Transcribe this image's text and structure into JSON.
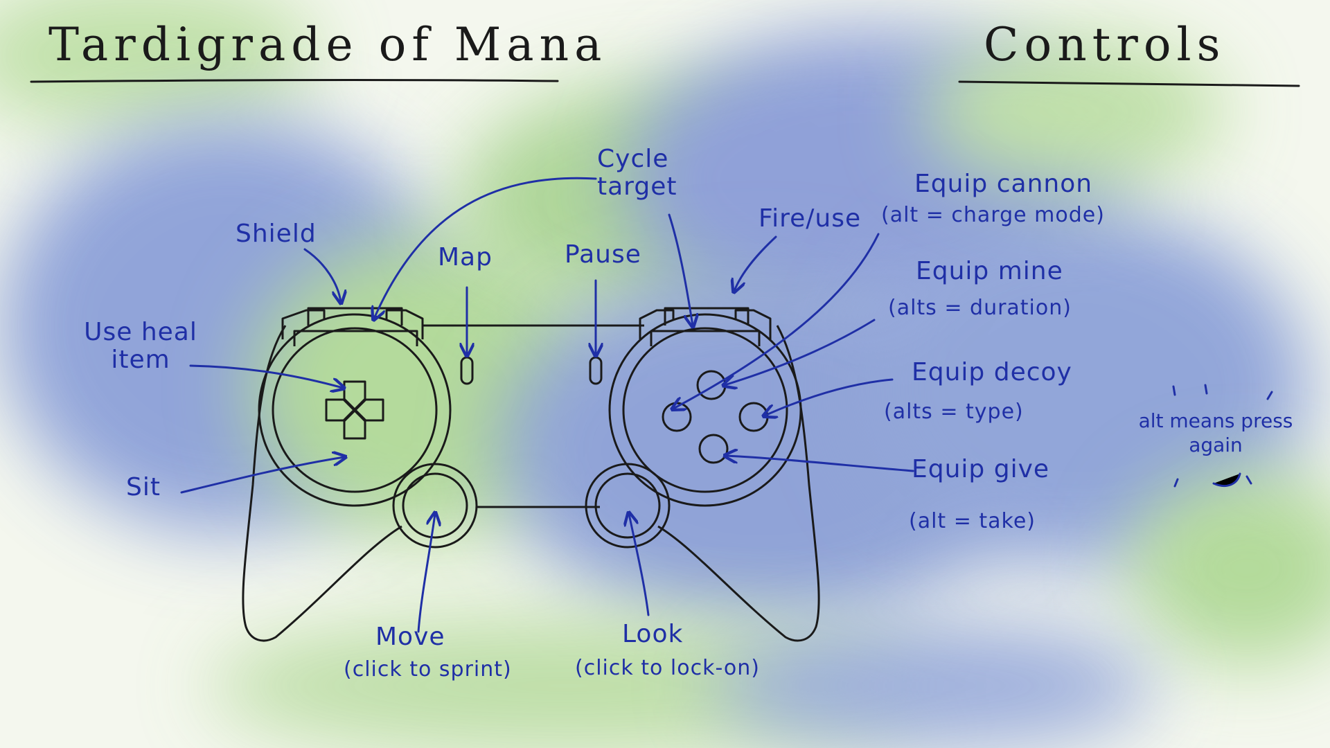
{
  "title": "Tardigrade of Mana",
  "heading": "Controls",
  "labels": {
    "cycle_target": "Cycle target",
    "shield": "Shield",
    "map": "Map",
    "pause": "Pause",
    "fire_use": "Fire/use",
    "use_heal_item": "Use heal item",
    "sit": "Sit",
    "move": "Move",
    "move_sub": "(click to sprint)",
    "look": "Look",
    "look_sub": "(click to lock-on)",
    "equip_cannon": "Equip cannon",
    "equip_cannon_sub": "(alt = charge mode)",
    "equip_mine": "Equip mine",
    "equip_mine_sub": "(alts = duration)",
    "equip_decoy": "Equip decoy",
    "equip_decoy_sub": "(alts = type)",
    "equip_give": "Equip give",
    "equip_give_sub": "(alt = take)"
  },
  "note": "alt means press again",
  "colors": {
    "ink": "#1a1a1a",
    "annotation": "#1f2fa6",
    "wash_blue": "#6f86cf",
    "wash_green": "#a8d58c"
  }
}
